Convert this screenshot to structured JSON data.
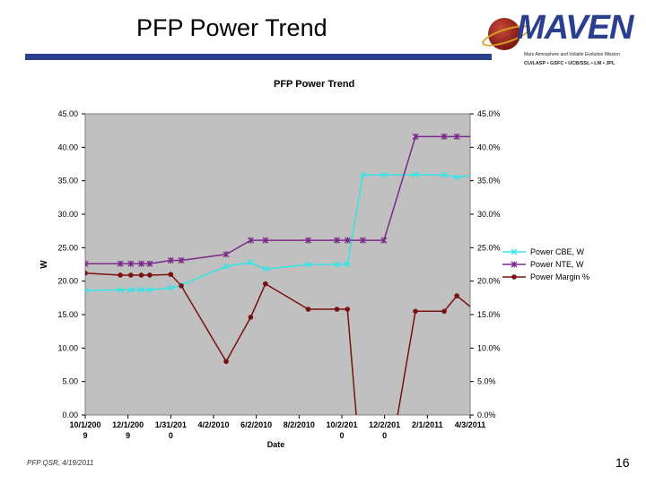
{
  "slide": {
    "title": "PFP Power Trend",
    "footer": "PFP QSR, 4/19/2011",
    "page_number": "16",
    "logo": {
      "word": "MAVEN",
      "tagline": "Mars Atmosphere and Volatile Evolution Mission",
      "partners": "CU/LASP • GSFC • UCB/SSL • LM • JPL"
    }
  },
  "colors": {
    "title_rule": "#2b3f8f",
    "plot_bg": "#c0c0c0",
    "cbe": "#33e5e5",
    "nte": "#7a2a8a",
    "margin": "#7a1010"
  },
  "chart_data": {
    "type": "line",
    "title": "PFP Power Trend",
    "xlabel": "Date",
    "ylabel": "W",
    "ylim": [
      0,
      45
    ],
    "y_ticks": [
      "0.00",
      "5.00",
      "10.00",
      "15.00",
      "20.00",
      "25.00",
      "30.00",
      "35.00",
      "40.00",
      "45.00"
    ],
    "y2lim": [
      0,
      45
    ],
    "y2_ticks": [
      "0.0%",
      "5.0%",
      "10.0%",
      "15.0%",
      "20.0%",
      "25.0%",
      "30.0%",
      "35.0%",
      "40.0%",
      "45.0%"
    ],
    "x_tick_labels": [
      [
        "10/1/200",
        "9"
      ],
      [
        "12/1/200",
        "9"
      ],
      [
        "1/31/201",
        "0"
      ],
      [
        "4/2/2010"
      ],
      [
        "6/2/2010"
      ],
      [
        "8/2/2010"
      ],
      [
        "10/2/201",
        "0"
      ],
      [
        "12/2/201",
        "0"
      ],
      [
        "2/1/2011"
      ],
      [
        "4/3/2011"
      ]
    ],
    "x_tick_dates": [
      "2009-10-01",
      "2009-12-01",
      "2010-01-31",
      "2010-04-02",
      "2010-06-02",
      "2010-08-02",
      "2010-10-02",
      "2010-12-02",
      "2011-02-01",
      "2011-04-03"
    ],
    "legend_position": "right",
    "grid": false,
    "series": [
      {
        "name": "Power CBE, W",
        "axis": "left",
        "marker": "x",
        "points": [
          [
            "2009-10-01",
            18.6
          ],
          [
            "2009-11-20",
            18.7
          ],
          [
            "2009-12-05",
            18.7
          ],
          [
            "2009-12-20",
            18.7
          ],
          [
            "2010-01-01",
            18.7
          ],
          [
            "2010-01-31",
            19.0
          ],
          [
            "2010-02-15",
            19.4
          ],
          [
            "2010-04-20",
            22.2
          ],
          [
            "2010-05-25",
            22.8
          ],
          [
            "2010-06-15",
            21.8
          ],
          [
            "2010-08-15",
            22.5
          ],
          [
            "2010-09-25",
            22.5
          ],
          [
            "2010-10-10",
            22.5
          ],
          [
            "2010-11-01",
            35.9
          ],
          [
            "2010-12-01",
            35.9
          ],
          [
            "2011-01-15",
            35.9
          ],
          [
            "2011-02-25",
            35.9
          ],
          [
            "2011-03-15",
            35.5
          ],
          [
            "2011-04-15",
            36.0
          ]
        ]
      },
      {
        "name": "Power NTE, W",
        "axis": "left",
        "marker": "star",
        "points": [
          [
            "2009-10-01",
            22.6
          ],
          [
            "2009-11-20",
            22.6
          ],
          [
            "2009-12-05",
            22.6
          ],
          [
            "2009-12-20",
            22.6
          ],
          [
            "2010-01-01",
            22.6
          ],
          [
            "2010-01-31",
            23.1
          ],
          [
            "2010-02-15",
            23.1
          ],
          [
            "2010-04-20",
            24.0
          ],
          [
            "2010-05-25",
            26.1
          ],
          [
            "2010-06-15",
            26.1
          ],
          [
            "2010-08-15",
            26.1
          ],
          [
            "2010-09-25",
            26.1
          ],
          [
            "2010-10-10",
            26.1
          ],
          [
            "2010-11-01",
            26.1
          ],
          [
            "2010-12-01",
            26.1
          ],
          [
            "2011-01-15",
            41.6
          ],
          [
            "2011-02-25",
            41.6
          ],
          [
            "2011-03-15",
            41.6
          ],
          [
            "2011-04-15",
            41.6
          ]
        ]
      },
      {
        "name": "Power Margin %",
        "axis": "right",
        "marker": "circle",
        "points": [
          [
            "2009-10-01",
            21.2
          ],
          [
            "2009-11-20",
            20.9
          ],
          [
            "2009-12-05",
            20.9
          ],
          [
            "2009-12-20",
            20.9
          ],
          [
            "2010-01-01",
            20.9
          ],
          [
            "2010-01-31",
            21.0
          ],
          [
            "2010-02-15",
            19.3
          ],
          [
            "2010-04-20",
            8.0
          ],
          [
            "2010-05-25",
            14.6
          ],
          [
            "2010-06-15",
            19.6
          ],
          [
            "2010-08-15",
            15.8
          ],
          [
            "2010-09-25",
            15.8
          ],
          [
            "2010-10-10",
            15.8
          ],
          [
            "2010-11-01",
            -12.0
          ],
          [
            "2010-12-01",
            -12.0
          ],
          [
            "2011-01-15",
            15.5
          ],
          [
            "2011-02-25",
            15.5
          ],
          [
            "2011-03-15",
            17.8
          ],
          [
            "2011-04-15",
            15.2
          ]
        ]
      }
    ]
  }
}
